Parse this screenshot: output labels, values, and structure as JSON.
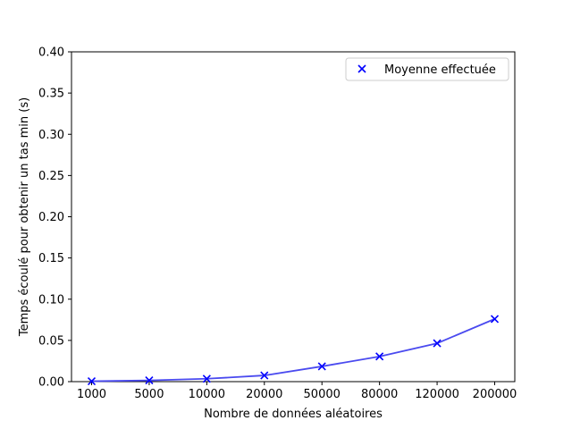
{
  "chart_data": {
    "type": "line",
    "categories": [
      "1000",
      "5000",
      "10000",
      "20000",
      "50000",
      "80000",
      "120000",
      "200000"
    ],
    "series": [
      {
        "name": "Moyenne effectuée",
        "values": [
          0.0005,
          0.0015,
          0.0035,
          0.0075,
          0.0185,
          0.0305,
          0.0465,
          0.076
        ]
      }
    ],
    "xlabel": "Nombre de données aléatoires",
    "ylabel": "Temps écoulé pour obtenir un tas min (s)",
    "ylim": [
      0,
      0.4
    ],
    "yticks": [
      "0.00",
      "0.05",
      "0.10",
      "0.15",
      "0.20",
      "0.25",
      "0.30",
      "0.35",
      "0.40"
    ],
    "grid": false,
    "legend_position": "top-right",
    "colors": {
      "line": "#4a4aef",
      "marker": "#0000ff"
    }
  }
}
